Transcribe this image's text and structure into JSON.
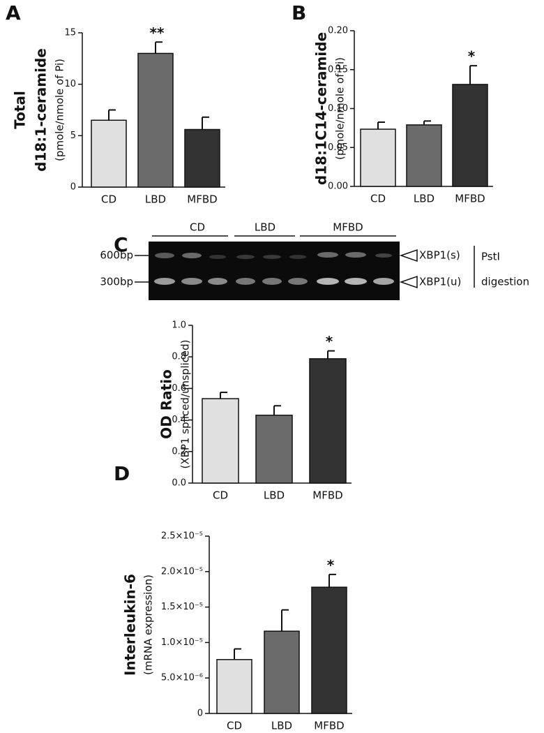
{
  "chart_data": [
    {
      "type": "bar",
      "panel": "A",
      "ylabel": [
        "Total",
        "d18:1-ceramide"
      ],
      "ylabel_sub": "(pmole/nmole of Pi)",
      "categories": [
        "CD",
        "LBD",
        "MFBD"
      ],
      "values": [
        6.5,
        13.0,
        5.6
      ],
      "errors": [
        1.0,
        1.1,
        1.2
      ],
      "annotations": [
        null,
        "**",
        null
      ],
      "colors": [
        "#e0e0e0",
        "#6b6b6b",
        "#333333"
      ],
      "ylim": [
        0,
        15
      ],
      "yticks": [
        0,
        5,
        10,
        15
      ]
    },
    {
      "type": "bar",
      "panel": "B",
      "ylabel": [
        "d18:1C14-ceramide"
      ],
      "ylabel_sub": "(pmole/nmole of Pi)",
      "categories": [
        "CD",
        "LBD",
        "MFBD"
      ],
      "values": [
        0.0735,
        0.079,
        0.131
      ],
      "errors": [
        0.009,
        0.005,
        0.024
      ],
      "annotations": [
        null,
        null,
        "*"
      ],
      "colors": [
        "#e0e0e0",
        "#6b6b6b",
        "#333333"
      ],
      "ylim": [
        0,
        0.2
      ],
      "yticks": [
        {
          "value": 0,
          "label": "0.00"
        },
        {
          "value": 0.05,
          "label": "0.05"
        },
        {
          "value": 0.1,
          "label": "0.10"
        },
        {
          "value": 0.15,
          "label": "0.15"
        },
        {
          "value": 0.2,
          "label": "0.20"
        }
      ]
    },
    {
      "type": "bar",
      "panel": "C",
      "ylabel": [
        "OD Ratio"
      ],
      "ylabel_sub": "(XBP1 spliced/unspliced)",
      "categories": [
        "CD",
        "LBD",
        "MFBD"
      ],
      "values": [
        0.535,
        0.43,
        0.788
      ],
      "errors": [
        0.04,
        0.06,
        0.05
      ],
      "annotations": [
        null,
        null,
        "*"
      ],
      "colors": [
        "#e0e0e0",
        "#6b6b6b",
        "#333333"
      ],
      "ylim": [
        0,
        1.0
      ],
      "yticks": [
        {
          "value": 0,
          "label": "0.0"
        },
        {
          "value": 0.2,
          "label": "0.2"
        },
        {
          "value": 0.4,
          "label": "0.4"
        },
        {
          "value": 0.6,
          "label": "0.6"
        },
        {
          "value": 0.8,
          "label": "0.8"
        },
        {
          "value": 1.0,
          "label": "1.0"
        }
      ],
      "gel_lanes": [
        "CD",
        "LBD",
        "MFBD"
      ],
      "gel_markers": [
        "600bp",
        "300bp"
      ],
      "gel_bands": [
        "XBP1(s)",
        "XBP1(u)"
      ],
      "gel_note": [
        "PstI",
        "digestion"
      ]
    },
    {
      "type": "bar",
      "panel": "D",
      "ylabel": [
        "Interleukin-6"
      ],
      "ylabel_sub": "(mRNA expression)",
      "categories": [
        "CD",
        "LBD",
        "MFBD"
      ],
      "values": [
        7.6e-06,
        1.16e-05,
        1.78e-05
      ],
      "errors": [
        1.5e-06,
        3e-06,
        1.8e-06
      ],
      "annotations": [
        null,
        null,
        "*"
      ],
      "colors": [
        "#e0e0e0",
        "#6b6b6b",
        "#333333"
      ],
      "ylim": [
        0,
        2.5e-05
      ],
      "yticks": [
        0,
        {
          "value": 5e-06,
          "label": "5.0×10⁻⁶"
        },
        {
          "value": 1e-05,
          "label": "1.0×10⁻⁵"
        },
        {
          "value": 1.5e-05,
          "label": "1.5×10⁻⁵"
        },
        {
          "value": 2e-05,
          "label": "2.0×10⁻⁵"
        },
        {
          "value": 2.5e-05,
          "label": "2.5×10⁻⁵"
        }
      ]
    }
  ]
}
